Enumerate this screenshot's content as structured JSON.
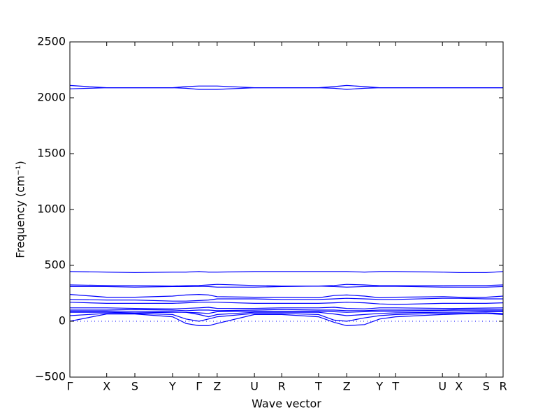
{
  "chart_data": {
    "type": "line",
    "xlabel": "Wave vector",
    "ylabel": "Frequency (cm⁻¹)",
    "xlim": [
      0,
      1
    ],
    "ylim": [
      -500,
      2500
    ],
    "xticks": [
      {
        "value": 0,
        "label": "Γ"
      },
      {
        "value": 0.085,
        "label": "X"
      },
      {
        "value": 0.15,
        "label": "S"
      },
      {
        "value": 0.237,
        "label": "Y"
      },
      {
        "value": 0.298,
        "label": "Γ"
      },
      {
        "value": 0.34,
        "label": "Z"
      },
      {
        "value": 0.426,
        "label": "U"
      },
      {
        "value": 0.489,
        "label": "R"
      },
      {
        "value": 0.574,
        "label": "T"
      },
      {
        "value": 0.639,
        "label": "Z"
      },
      {
        "value": 0.715,
        "label": "Y"
      },
      {
        "value": 0.752,
        "label": "T"
      },
      {
        "value": 0.86,
        "label": "U"
      },
      {
        "value": 0.898,
        "label": "X"
      },
      {
        "value": 0.961,
        "label": "S"
      },
      {
        "value": 1.0,
        "label": "R"
      }
    ],
    "yticks": [
      {
        "value": -500,
        "label": "−500"
      },
      0,
      500,
      1000,
      1500,
      2000,
      2500
    ],
    "reference_line": 0,
    "x": [
      0,
      0.085,
      0.15,
      0.237,
      0.268,
      0.298,
      0.32,
      0.34,
      0.426,
      0.489,
      0.574,
      0.61,
      0.639,
      0.68,
      0.715,
      0.752,
      0.86,
      0.898,
      0.961,
      1.0
    ],
    "series": [
      {
        "color": "#0000ff",
        "values": [
          2110,
          2090,
          2090,
          2090,
          2100,
          2105,
          2105,
          2105,
          2090,
          2090,
          2090,
          2100,
          2110,
          2100,
          2090,
          2090,
          2090,
          2090,
          2090,
          2090
        ]
      },
      {
        "color": "#0000ff",
        "values": [
          2080,
          2090,
          2090,
          2090,
          2085,
          2075,
          2075,
          2075,
          2090,
          2090,
          2090,
          2085,
          2075,
          2085,
          2090,
          2090,
          2090,
          2090,
          2090,
          2090
        ]
      },
      {
        "color": "#0000ff",
        "values": [
          445,
          440,
          435,
          440,
          440,
          445,
          440,
          440,
          445,
          445,
          445,
          445,
          445,
          440,
          445,
          445,
          440,
          435,
          435,
          445
        ]
      },
      {
        "color": "#0000ff",
        "values": [
          325,
          320,
          318,
          315,
          318,
          320,
          325,
          330,
          320,
          315,
          315,
          320,
          330,
          325,
          318,
          318,
          318,
          320,
          320,
          325
        ]
      },
      {
        "color": "#0000ff",
        "values": [
          310,
          310,
          305,
          310,
          310,
          312,
          310,
          305,
          305,
          310,
          315,
          310,
          305,
          310,
          312,
          312,
          305,
          305,
          305,
          310
        ]
      },
      {
        "color": "#0000ff",
        "values": [
          240,
          215,
          215,
          225,
          235,
          240,
          235,
          220,
          215,
          215,
          210,
          230,
          235,
          225,
          210,
          215,
          220,
          215,
          215,
          225
        ]
      },
      {
        "color": "#0000ff",
        "values": [
          195,
          190,
          190,
          180,
          180,
          185,
          190,
          200,
          200,
          195,
          195,
          200,
          205,
          200,
          195,
          195,
          205,
          205,
          200,
          200
        ]
      },
      {
        "color": "#0000ff",
        "values": [
          170,
          160,
          160,
          160,
          165,
          170,
          170,
          170,
          160,
          160,
          160,
          165,
          170,
          165,
          155,
          150,
          160,
          160,
          160,
          165
        ]
      },
      {
        "color": "#0000ff",
        "values": [
          120,
          120,
          115,
          110,
          115,
          120,
          125,
          115,
          115,
          120,
          120,
          125,
          115,
          110,
          120,
          120,
          115,
          115,
          118,
          120
        ]
      },
      {
        "color": "#0000ff",
        "values": [
          100,
          100,
          105,
          100,
          95,
          100,
          100,
          95,
          100,
          105,
          100,
          100,
          95,
          95,
          100,
          100,
          100,
          105,
          105,
          105
        ]
      },
      {
        "color": "#0000ff",
        "values": [
          90,
          90,
          90,
          85,
          80,
          75,
          70,
          85,
          90,
          90,
          90,
          85,
          80,
          85,
          90,
          90,
          95,
          95,
          95,
          95
        ]
      },
      {
        "color": "#0000ff",
        "values": [
          80,
          80,
          75,
          80,
          80,
          60,
          40,
          60,
          80,
          80,
          80,
          65,
          50,
          60,
          70,
          75,
          80,
          80,
          85,
          85
        ]
      },
      {
        "color": "#0000ff",
        "values": [
          50,
          70,
          70,
          60,
          20,
          0,
          20,
          40,
          70,
          70,
          60,
          10,
          0,
          30,
          50,
          60,
          70,
          70,
          75,
          70
        ]
      },
      {
        "color": "#0000ff",
        "values": [
          0,
          65,
          65,
          40,
          -20,
          -40,
          -40,
          -20,
          60,
          60,
          40,
          -10,
          -40,
          -30,
          20,
          40,
          60,
          65,
          70,
          60
        ]
      }
    ]
  }
}
